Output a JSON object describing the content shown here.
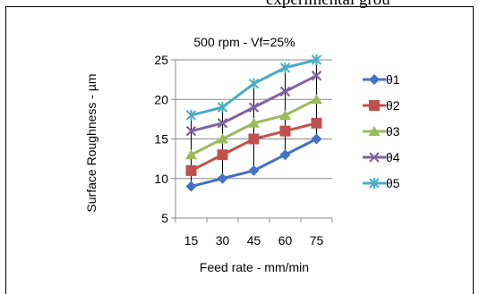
{
  "page_header_text": "experimental grou",
  "chart_data": {
    "type": "line",
    "title": "500 rpm - Vf=25%",
    "xlabel": "Feed rate - mm/min",
    "ylabel": "Surface Roughness - µm",
    "categories": [
      "15",
      "30",
      "45",
      "60",
      "75"
    ],
    "ylim": [
      5,
      25
    ],
    "yticks": [
      5,
      10,
      15,
      20,
      25
    ],
    "grid": "horizontal",
    "legend_position": "right",
    "high_low_lines": true,
    "series": [
      {
        "name": "θ1",
        "values": [
          9,
          10,
          11,
          13,
          15
        ],
        "color": "#4472c4",
        "marker": "diamond"
      },
      {
        "name": "θ2",
        "values": [
          11,
          13,
          15,
          16,
          17
        ],
        "color": "#c0504d",
        "marker": "square"
      },
      {
        "name": "θ3",
        "values": [
          13,
          15,
          17,
          18,
          20
        ],
        "color": "#9bbb59",
        "marker": "triangle"
      },
      {
        "name": "θ4",
        "values": [
          16,
          17,
          19,
          21,
          23
        ],
        "color": "#8064a2",
        "marker": "x"
      },
      {
        "name": "θ5",
        "values": [
          18,
          19,
          22,
          24,
          25
        ],
        "color": "#4bacc6",
        "marker": "star"
      }
    ]
  }
}
